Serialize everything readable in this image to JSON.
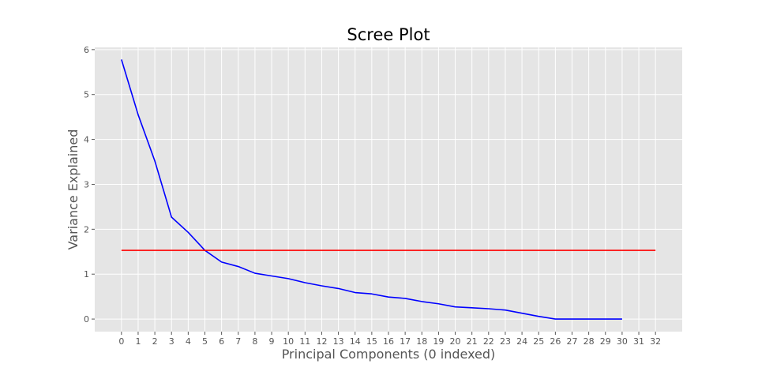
{
  "chart_data": {
    "type": "line",
    "title": "Scree Plot",
    "xlabel": "Principal Components (0 indexed)",
    "ylabel": "Variance Explained",
    "xlim": [
      -1.6,
      33.6
    ],
    "ylim": [
      -0.28,
      6.05
    ],
    "x_ticks": [
      0,
      1,
      2,
      3,
      4,
      5,
      6,
      7,
      8,
      9,
      10,
      11,
      12,
      13,
      14,
      15,
      16,
      17,
      18,
      19,
      20,
      21,
      22,
      23,
      24,
      25,
      26,
      27,
      28,
      29,
      30,
      31,
      32
    ],
    "y_ticks": [
      0,
      1,
      2,
      3,
      4,
      5,
      6
    ],
    "grid": true,
    "background": "#e5e5e5",
    "series": [
      {
        "color": "#0000ff",
        "x": [
          0,
          1,
          2,
          3,
          4,
          5,
          6,
          7,
          8,
          9,
          10,
          11,
          12,
          13,
          14,
          15,
          16,
          17,
          18,
          19,
          20,
          21,
          22,
          23,
          24,
          25,
          26,
          27,
          28,
          29,
          30
        ],
        "y": [
          5.78,
          4.55,
          3.52,
          2.27,
          1.93,
          1.53,
          1.27,
          1.17,
          1.02,
          0.96,
          0.9,
          0.81,
          0.74,
          0.68,
          0.59,
          0.56,
          0.49,
          0.46,
          0.39,
          0.34,
          0.27,
          0.25,
          0.23,
          0.2,
          0.13,
          0.06,
          0.0,
          0.0,
          0.0,
          0.0,
          0.0
        ]
      },
      {
        "color": "#ff0000",
        "x": [
          0,
          32
        ],
        "y": [
          1.53,
          1.53
        ]
      }
    ]
  }
}
